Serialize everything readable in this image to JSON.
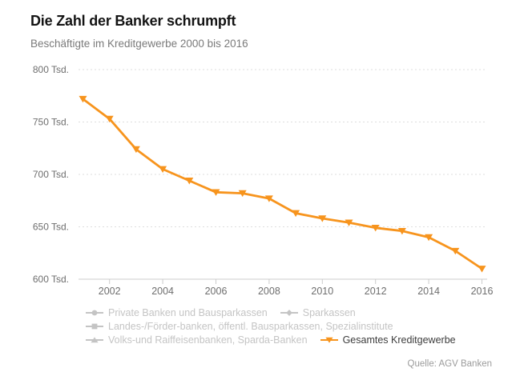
{
  "header": {
    "title": "Die Zahl der Banker schrumpft",
    "subtitle": "Beschäftigte im Kreditgewerbe 2000 bis 2016"
  },
  "source": {
    "label": "Quelle: AGV Banken"
  },
  "colors": {
    "accent_orange": "#f7941d",
    "disabled_gray": "#c4c4c4",
    "active_label": "#3c3c3c",
    "axis_text": "#6e6e6e",
    "gridline": "#dedede",
    "axis_line": "#cccccc"
  },
  "legend": {
    "items": [
      {
        "label": "Private Banken und Bausparkassen",
        "marker": "circle",
        "active": false
      },
      {
        "label": "Sparkassen",
        "marker": "diamond",
        "active": false
      },
      {
        "label": "Landes-/Förder-banken, öffentl. Bausparkassen, Spezialinstitute",
        "marker": "square",
        "active": false
      },
      {
        "label": "Volks-und Raiffeisenbanken, Sparda-Banken",
        "marker": "triangle-up",
        "active": false
      },
      {
        "label": "Gesamtes Kreditgewerbe",
        "marker": "triangle-down",
        "active": true
      }
    ]
  },
  "chart_data": {
    "type": "line",
    "title": "Die Zahl der Banker schrumpft",
    "subtitle": "Beschäftigte im Kreditgewerbe 2000 bis 2016",
    "x": [
      2001,
      2002,
      2003,
      2004,
      2005,
      2006,
      2007,
      2008,
      2009,
      2010,
      2011,
      2012,
      2013,
      2014,
      2015,
      2016
    ],
    "series": [
      {
        "name": "Gesamtes Kreditgewerbe",
        "values": [
          772,
          753,
          724,
          705,
          694,
          683,
          682,
          677,
          663,
          658,
          654,
          649,
          646,
          640,
          627,
          610
        ]
      }
    ],
    "unit": "Tsd.",
    "ylim": [
      600,
      800
    ],
    "yticks": [
      {
        "value": 800,
        "label": "800 Tsd."
      },
      {
        "value": 750,
        "label": "750 Tsd."
      },
      {
        "value": 700,
        "label": "700 Tsd."
      },
      {
        "value": 650,
        "label": "650 Tsd."
      },
      {
        "value": 600,
        "label": "600 Tsd."
      }
    ],
    "xticks": [
      {
        "value": 2002,
        "label": "2002"
      },
      {
        "value": 2004,
        "label": "2004"
      },
      {
        "value": 2006,
        "label": "2006"
      },
      {
        "value": 2008,
        "label": "2008"
      },
      {
        "value": 2010,
        "label": "2010"
      },
      {
        "value": 2012,
        "label": "2012"
      },
      {
        "value": 2014,
        "label": "2014"
      },
      {
        "value": 2016,
        "label": "2016"
      }
    ],
    "grid": "horizontal-dashed",
    "legend_position": "bottom",
    "line_color": "#f7941d",
    "marker": "triangle-down"
  }
}
